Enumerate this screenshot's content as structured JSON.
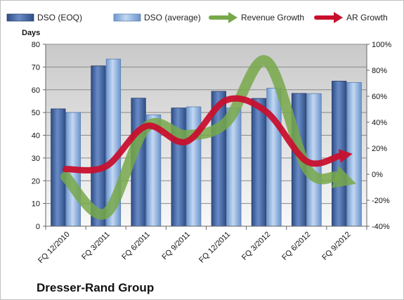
{
  "chart_data": {
    "type": "bar",
    "title": "Dresser-Rand Group",
    "ylabel": "Days",
    "ylim": [
      0,
      80
    ],
    "y_ticks": [
      "0",
      "10",
      "20",
      "30",
      "40",
      "50",
      "60",
      "70",
      "80"
    ],
    "y2lim": [
      -40,
      100
    ],
    "y2_ticks": [
      "-40%",
      "-20%",
      "0%",
      "20%",
      "40%",
      "60%",
      "80%",
      "100%"
    ],
    "categories": [
      "FQ 12/2010",
      "FQ 3/2011",
      "FQ 6/2011",
      "FQ 9/2011",
      "FQ 12/2011",
      "FQ 3/2012",
      "FQ 6/2012",
      "FQ 9/2012"
    ],
    "series": [
      {
        "name": "DSO (EOQ)",
        "type": "bar",
        "axis": "left",
        "color": "#4f6fa8",
        "values": [
          51.6,
          70.5,
          56.3,
          52.0,
          59.3,
          56.2,
          58.4,
          63.8
        ]
      },
      {
        "name": "DSO (average)",
        "type": "bar",
        "axis": "left",
        "color": "#8db3e2",
        "values": [
          50.0,
          73.5,
          49.0,
          52.5,
          52.0,
          60.7,
          58.3,
          63.2
        ]
      },
      {
        "name": "Revenue Growth",
        "type": "line",
        "axis": "right",
        "color": "#77a84a",
        "values": [
          -2,
          -30,
          36,
          30,
          40,
          87,
          5,
          -5
        ]
      },
      {
        "name": "AR Growth",
        "type": "line",
        "axis": "right",
        "color": "#c8102e",
        "values": [
          4,
          6,
          37,
          25,
          57,
          48,
          10,
          15
        ]
      }
    ],
    "grid": true,
    "legend_position": "top"
  }
}
